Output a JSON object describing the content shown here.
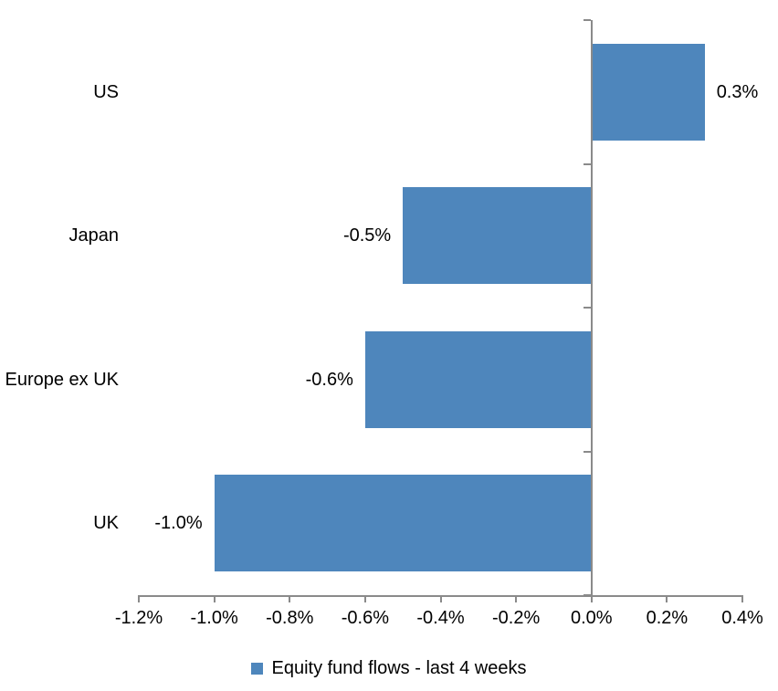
{
  "chart_data": {
    "type": "bar",
    "orientation": "horizontal",
    "title": "",
    "categories": [
      "US",
      "Japan",
      "Europe ex UK",
      "UK"
    ],
    "values": [
      0.3,
      -0.5,
      -0.6,
      -1.0
    ],
    "data_labels": [
      "0.3%",
      "-0.5%",
      "-0.6%",
      "-1.0%"
    ],
    "x_axis": {
      "min": -1.2,
      "max": 0.4,
      "step": 0.2,
      "tick_labels": [
        "-1.2%",
        "-1.0%",
        "-0.8%",
        "-0.6%",
        "-0.4%",
        "-0.2%",
        "0.0%",
        "0.2%",
        "0.4%"
      ]
    },
    "legend": {
      "label": "Equity fund flows - last 4 weeks",
      "position": "bottom"
    },
    "grid": false,
    "colors": {
      "bar": "#4E86BC",
      "axis": "#8A8A8A",
      "text": "#000000",
      "background": "#FFFFFF"
    }
  }
}
